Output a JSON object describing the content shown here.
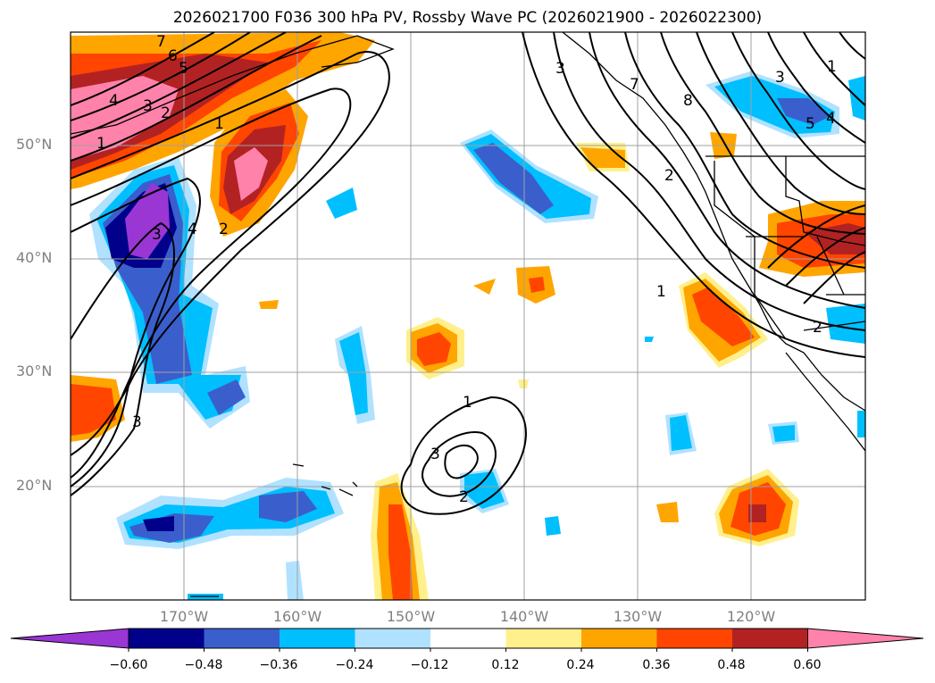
{
  "title": "2026021700 F036 300 hPa PV, Rossby Wave PC (2026021900 - 2026022300)",
  "lat_labels": [
    "50°N",
    "40°N",
    "30°N",
    "20°N"
  ],
  "lon_labels": [
    "170°W",
    "160°W",
    "150°W",
    "140°W",
    "130°W",
    "120°W"
  ],
  "colorbar": {
    "ticks": [
      "−0.60",
      "−0.48",
      "−0.36",
      "−0.24",
      "−0.12",
      "0.12",
      "0.24",
      "0.36",
      "0.48",
      "0.60"
    ],
    "colors": [
      "#9a36d3",
      "#00008b",
      "#3a5fcd",
      "#00bfff",
      "#b0e2ff",
      "#ffffff",
      "#fff08c",
      "#ffa500",
      "#ff4500",
      "#b22222",
      "#ff82ab"
    ]
  },
  "contour_labels": [
    "7",
    "6",
    "5",
    "4",
    "3",
    "2",
    "1",
    "1",
    "3",
    "4",
    "2",
    "3",
    "1",
    "3",
    "2",
    "8",
    "7",
    "1",
    "2",
    "3",
    "5",
    "4",
    "1",
    "2",
    "3"
  ]
}
